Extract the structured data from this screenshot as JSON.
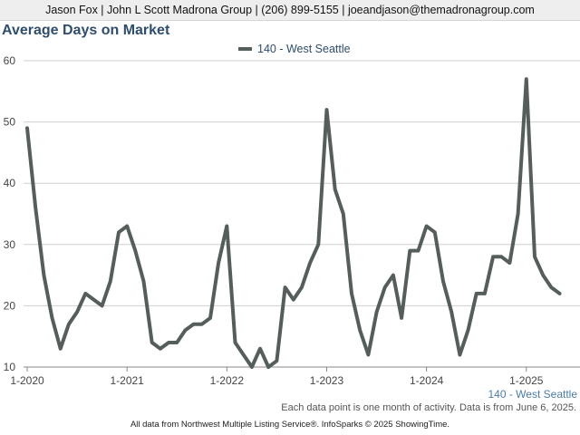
{
  "header": {
    "contact": "Jason Fox | John L Scott Madrona Group | (206) 899-5155 | joeandjason@themadronagroup.com"
  },
  "footer": {
    "note": "Each data point is one month of activity. Data is from June 6, 2025.",
    "source": "All data from Northwest Multiple Listing Service®. InfoSparks © 2025 ShowingTime."
  },
  "colors": {
    "series": "#555e5b",
    "title": "#2f4d6d",
    "accent_label": "#4a7ca8"
  },
  "chart_data": {
    "type": "line",
    "title": "Average Days on Market",
    "xlabel": "",
    "ylabel": "",
    "ylim": [
      10,
      60
    ],
    "yticks": [
      10,
      20,
      30,
      40,
      50,
      60
    ],
    "xticks": [
      {
        "label": "1-2020",
        "index": 0
      },
      {
        "label": "1-2021",
        "index": 12
      },
      {
        "label": "1-2022",
        "index": 24
      },
      {
        "label": "1-2023",
        "index": 36
      },
      {
        "label": "1-2024",
        "index": 48
      },
      {
        "label": "1-2025",
        "index": 60
      }
    ],
    "grid": true,
    "legend_position": "top-center",
    "end_label": "140 - West Seattle",
    "series": [
      {
        "name": "140 - West Seattle",
        "values": [
          49,
          36,
          25,
          18,
          13,
          17,
          19,
          22,
          21,
          20,
          24,
          32,
          33,
          29,
          24,
          14,
          13,
          14,
          14,
          16,
          17,
          17,
          18,
          27,
          33,
          14,
          12,
          10,
          13,
          10,
          11,
          23,
          21,
          23,
          27,
          30,
          52,
          39,
          35,
          22,
          16,
          12,
          19,
          23,
          25,
          18,
          29,
          29,
          33,
          32,
          24,
          19,
          12,
          16,
          22,
          22,
          28,
          28,
          27,
          35,
          57,
          28,
          25,
          23,
          22
        ]
      }
    ]
  }
}
